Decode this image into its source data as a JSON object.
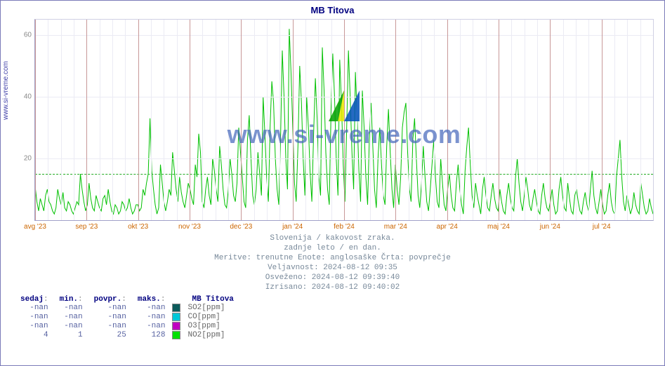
{
  "title": "MB Titova",
  "ylabel": "www.si-vreme.com",
  "watermark_text": "www.si-vreme.com",
  "chart": {
    "type": "line",
    "ylim": [
      0,
      65
    ],
    "yticks": [
      20,
      40,
      60
    ],
    "threshold": 15,
    "line_color": "#00c000",
    "line_width": 1,
    "grid_color": "#ebebf4",
    "threshold_color": "#22aa22",
    "xticks": [
      "avg '23",
      "sep '23",
      "okt '23",
      "nov '23",
      "dec '23",
      "jan '24",
      "feb '24",
      "mar '24",
      "apr '24",
      "maj '24",
      "jun '24",
      "jul '24"
    ],
    "series_y": [
      11,
      6,
      3,
      7,
      5,
      3,
      8,
      10,
      6,
      5,
      3,
      2,
      4,
      10,
      7,
      5,
      9,
      4,
      3,
      6,
      5,
      3,
      2,
      4,
      6,
      5,
      15,
      10,
      6,
      3,
      5,
      12,
      7,
      4,
      3,
      8,
      6,
      4,
      3,
      7,
      8,
      5,
      10,
      6,
      3,
      2,
      5,
      4,
      2,
      3,
      6,
      5,
      3,
      4,
      7,
      4,
      2,
      3,
      5,
      5,
      3,
      4,
      10,
      8,
      12,
      15,
      33,
      16,
      10,
      5,
      2,
      4,
      18,
      12,
      6,
      3,
      6,
      10,
      8,
      22,
      16,
      10,
      6,
      14,
      9,
      6,
      4,
      8,
      12,
      10,
      7,
      5,
      18,
      14,
      28,
      22,
      6,
      4,
      10,
      14,
      8,
      5,
      20,
      16,
      10,
      6,
      24,
      18,
      10,
      5,
      4,
      10,
      20,
      15,
      8,
      6,
      12,
      30,
      22,
      14,
      6,
      4,
      26,
      34,
      20,
      8,
      5,
      10,
      22,
      15,
      8,
      40,
      28,
      14,
      6,
      30,
      45,
      38,
      20,
      10,
      5,
      26,
      55,
      40,
      20,
      10,
      62,
      48,
      30,
      12,
      6,
      24,
      50,
      38,
      20,
      8,
      40,
      30,
      15,
      6,
      28,
      46,
      33,
      14,
      8,
      56,
      42,
      22,
      10,
      5,
      36,
      54,
      40,
      20,
      8,
      52,
      38,
      18,
      6,
      30,
      55,
      40,
      22,
      10,
      48,
      34,
      16,
      6,
      42,
      30,
      14,
      5,
      26,
      38,
      24,
      10,
      4,
      20,
      30,
      18,
      8,
      5,
      24,
      36,
      22,
      10,
      4,
      18,
      10,
      5,
      14,
      30,
      35,
      38,
      22,
      10,
      6,
      26,
      33,
      20,
      8,
      4,
      12,
      24,
      14,
      6,
      3,
      10,
      18,
      26,
      14,
      6,
      4,
      20,
      12,
      5,
      3,
      10,
      15,
      8,
      4,
      3,
      12,
      18,
      10,
      5,
      2,
      16,
      24,
      30,
      18,
      8,
      4,
      12,
      8,
      5,
      2,
      10,
      14,
      8,
      4,
      3,
      8,
      12,
      7,
      4,
      3,
      10,
      6,
      3,
      2,
      8,
      12,
      7,
      4,
      3,
      14,
      20,
      12,
      6,
      3,
      8,
      14,
      10,
      5,
      3,
      7,
      10,
      6,
      3,
      2,
      8,
      12,
      7,
      4,
      3,
      6,
      10,
      5,
      2,
      3,
      10,
      14,
      8,
      4,
      3,
      12,
      7,
      3,
      2,
      8,
      10,
      6,
      3,
      2,
      6,
      9,
      5,
      3,
      10,
      16,
      8,
      4,
      2,
      6,
      10,
      5,
      2,
      3,
      8,
      12,
      6,
      3,
      2,
      14,
      20,
      26,
      14,
      6,
      3,
      8,
      5,
      2,
      4,
      9,
      5,
      3,
      2,
      12,
      8,
      4,
      2,
      3,
      7,
      4,
      2
    ]
  },
  "meta": [
    "Slovenija / kakovost zraka.",
    "zadnje leto / en dan.",
    "Meritve: trenutne  Enote: anglosaške  Črta: povprečje",
    "Veljavnost: 2024-08-12 09:35",
    "Osveženo: 2024-08-12 09:39:40",
    "Izrisano: 2024-08-12 09:40:02"
  ],
  "legend": {
    "headers": [
      "sedaj",
      "min.",
      "povpr.",
      "maks."
    ],
    "station": "MB Titova",
    "rows": [
      {
        "values": [
          "-nan",
          "-nan",
          "-nan",
          "-nan"
        ],
        "color": "#0c5b5b",
        "label": "SO2[ppm]"
      },
      {
        "values": [
          "-nan",
          "-nan",
          "-nan",
          "-nan"
        ],
        "color": "#00c8d8",
        "label": "CO[ppm]"
      },
      {
        "values": [
          "-nan",
          "-nan",
          "-nan",
          "-nan"
        ],
        "color": "#c000c0",
        "label": "O3[ppm]"
      },
      {
        "values": [
          "4",
          "1",
          "25",
          "128"
        ],
        "color": "#00e000",
        "label": "NO2[ppm]"
      }
    ]
  },
  "logo_colors": {
    "a": "#e8e800",
    "b": "#0050b8",
    "c": "#00a000"
  }
}
